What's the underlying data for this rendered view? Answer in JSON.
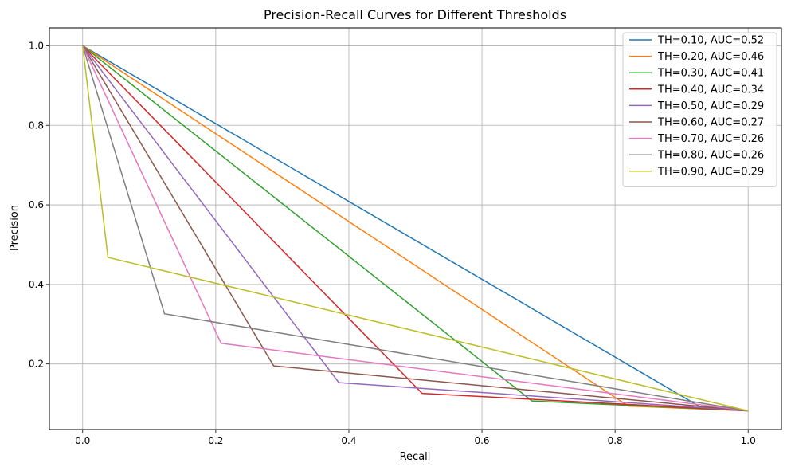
{
  "chart_data": {
    "type": "line",
    "title": "Precision-Recall Curves for Different Thresholds",
    "xlabel": "Recall",
    "ylabel": "Precision",
    "xlim": [
      -0.05,
      1.05
    ],
    "ylim": [
      0.035,
      1.045
    ],
    "xticks": [
      0.0,
      0.2,
      0.4,
      0.6,
      0.8,
      1.0
    ],
    "xtick_labels": [
      "0.0",
      "0.2",
      "0.4",
      "0.6",
      "0.8",
      "1.0"
    ],
    "yticks": [
      0.2,
      0.4,
      0.6,
      0.8,
      1.0
    ],
    "ytick_labels": [
      "0.2",
      "0.4",
      "0.6",
      "0.8",
      "1.0"
    ],
    "grid": true,
    "legend_position": "top-right",
    "series": [
      {
        "name": "TH=0.10, AUC=0.52",
        "color": "#1f77b4",
        "x": [
          0.0,
          0.93,
          1.0
        ],
        "y": [
          1.0,
          0.09,
          0.082
        ]
      },
      {
        "name": "TH=0.20, AUC=0.46",
        "color": "#ff7f0e",
        "x": [
          0.0,
          0.82,
          1.0
        ],
        "y": [
          1.0,
          0.094,
          0.082
        ]
      },
      {
        "name": "TH=0.30, AUC=0.41",
        "color": "#2ca02c",
        "x": [
          0.0,
          0.675,
          1.0
        ],
        "y": [
          1.0,
          0.107,
          0.082
        ]
      },
      {
        "name": "TH=0.40, AUC=0.34",
        "color": "#d62728",
        "x": [
          0.0,
          0.51,
          1.0
        ],
        "y": [
          1.0,
          0.126,
          0.082
        ]
      },
      {
        "name": "TH=0.50, AUC=0.29",
        "color": "#9467bd",
        "x": [
          0.0,
          0.385,
          1.0
        ],
        "y": [
          1.0,
          0.153,
          0.082
        ]
      },
      {
        "name": "TH=0.60, AUC=0.27",
        "color": "#8c564b",
        "x": [
          0.0,
          0.287,
          1.0
        ],
        "y": [
          1.0,
          0.195,
          0.082
        ]
      },
      {
        "name": "TH=0.70, AUC=0.26",
        "color": "#e377c2",
        "x": [
          0.0,
          0.208,
          1.0
        ],
        "y": [
          1.0,
          0.252,
          0.082
        ]
      },
      {
        "name": "TH=0.80, AUC=0.26",
        "color": "#7f7f7f",
        "x": [
          0.0,
          0.123,
          1.0
        ],
        "y": [
          1.0,
          0.326,
          0.082
        ]
      },
      {
        "name": "TH=0.90, AUC=0.29",
        "color": "#bcbd22",
        "x": [
          0.0,
          0.038,
          1.0
        ],
        "y": [
          1.0,
          0.468,
          0.082
        ]
      }
    ]
  }
}
